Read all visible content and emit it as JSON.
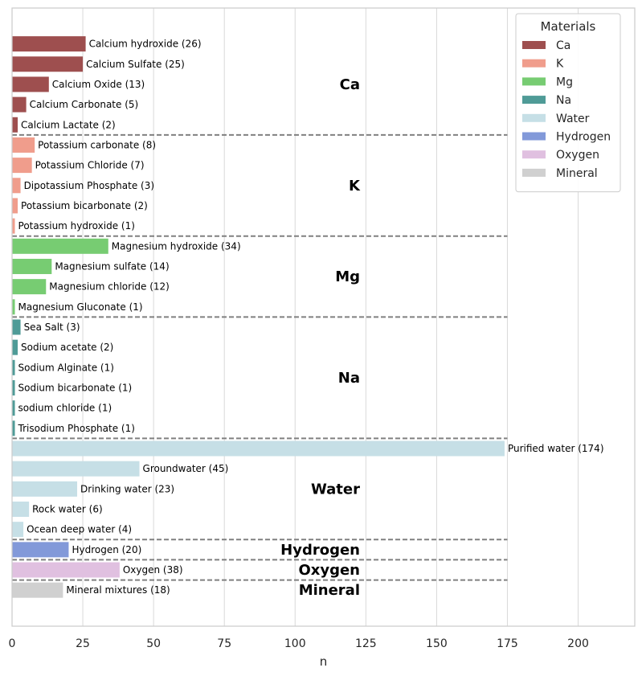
{
  "chart_data": {
    "type": "bar",
    "orientation": "horizontal",
    "xlabel": "n",
    "xlim": [
      0,
      220
    ],
    "xticks": [
      0,
      25,
      50,
      75,
      100,
      125,
      150,
      175,
      200
    ],
    "grid": "vertical",
    "separator_x_end": 175,
    "legend": {
      "title": "Materials",
      "placement": "top-right",
      "entries": [
        {
          "name": "Ca",
          "color": "#9E4F4F"
        },
        {
          "name": "K",
          "color": "#F09D8C"
        },
        {
          "name": "Mg",
          "color": "#77CC72"
        },
        {
          "name": "Na",
          "color": "#4F9B97"
        },
        {
          "name": "Water",
          "color": "#C6DFE6"
        },
        {
          "name": "Hydrogen",
          "color": "#8299D9"
        },
        {
          "name": "Oxygen",
          "color": "#E0C0E0"
        },
        {
          "name": "Mineral",
          "color": "#D0D0D0"
        }
      ]
    },
    "groups": [
      {
        "name": "Ca",
        "color": "#9E4F4F",
        "items": [
          {
            "label": "Calcium hydroxide (26)",
            "value": 26
          },
          {
            "label": "Calcium Sulfate (25)",
            "value": 25
          },
          {
            "label": "Calcium Oxide (13)",
            "value": 13
          },
          {
            "label": "Calcium Carbonate (5)",
            "value": 5
          },
          {
            "label": "Calcium Lactate (2)",
            "value": 2
          }
        ]
      },
      {
        "name": "K",
        "color": "#F09D8C",
        "items": [
          {
            "label": "Potassium carbonate (8)",
            "value": 8
          },
          {
            "label": "Potassium Chloride (7)",
            "value": 7
          },
          {
            "label": "Dipotassium Phosphate (3)",
            "value": 3
          },
          {
            "label": "Potassium bicarbonate (2)",
            "value": 2
          },
          {
            "label": "Potassium hydroxide (1)",
            "value": 1
          }
        ]
      },
      {
        "name": "Mg",
        "color": "#77CC72",
        "items": [
          {
            "label": "Magnesium hydroxide (34)",
            "value": 34
          },
          {
            "label": "Magnesium sulfate (14)",
            "value": 14
          },
          {
            "label": "Magnesium chloride (12)",
            "value": 12
          },
          {
            "label": "Magnesium Gluconate (1)",
            "value": 1
          }
        ]
      },
      {
        "name": "Na",
        "color": "#4F9B97",
        "items": [
          {
            "label": "Sea Salt (3)",
            "value": 3
          },
          {
            "label": "Sodium acetate (2)",
            "value": 2
          },
          {
            "label": "Sodium Alginate (1)",
            "value": 1
          },
          {
            "label": "Sodium bicarbonate (1)",
            "value": 1
          },
          {
            "label": "sodium chloride (1)",
            "value": 1
          },
          {
            "label": "Trisodium Phosphate (1)",
            "value": 1
          }
        ]
      },
      {
        "name": "Water",
        "color": "#C6DFE6",
        "items": [
          {
            "label": "Purified water (174)",
            "value": 174
          },
          {
            "label": "Groundwater (45)",
            "value": 45
          },
          {
            "label": "Drinking water (23)",
            "value": 23
          },
          {
            "label": "Rock water (6)",
            "value": 6
          },
          {
            "label": "Ocean deep water (4)",
            "value": 4
          }
        ]
      },
      {
        "name": "Hydrogen",
        "color": "#8299D9",
        "items": [
          {
            "label": "Hydrogen (20)",
            "value": 20
          }
        ]
      },
      {
        "name": "Oxygen",
        "color": "#E0C0E0",
        "items": [
          {
            "label": "Oxygen (38)",
            "value": 38
          }
        ]
      },
      {
        "name": "Mineral",
        "color": "#D0D0D0",
        "items": [
          {
            "label": "Mineral mixtures (18)",
            "value": 18
          }
        ]
      }
    ]
  }
}
